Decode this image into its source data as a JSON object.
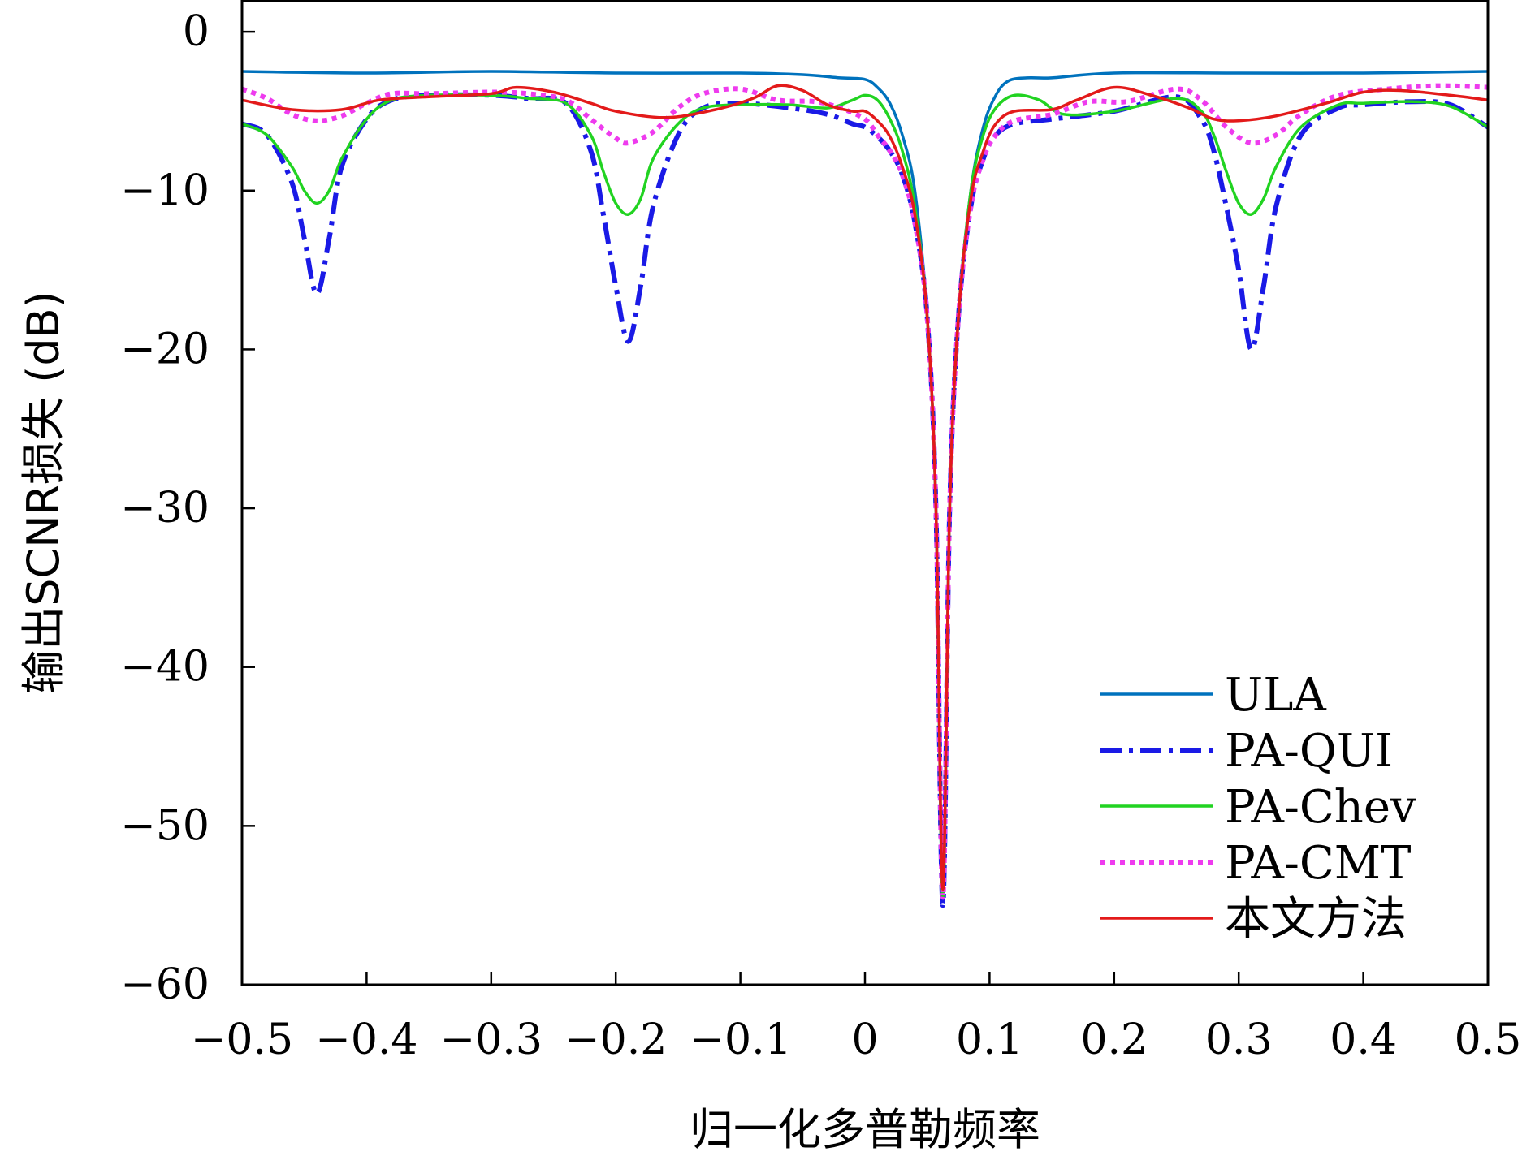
{
  "chart_data": {
    "type": "line",
    "title": "",
    "xlabel": "归一化多普勒频率",
    "ylabel": "输出SCNR损失 (dB)",
    "xlim": [
      -0.5,
      0.5
    ],
    "ylim": [
      -60,
      2
    ],
    "xticks": [
      -0.5,
      -0.4,
      -0.3,
      -0.2,
      -0.1,
      0,
      0.1,
      0.2,
      0.3,
      0.4,
      0.5
    ],
    "xtick_labels": [
      "−0.5",
      "−0.4",
      "−0.3",
      "−0.2",
      "−0.1",
      "0",
      "0.1",
      "0.2",
      "0.3",
      "0.4",
      "0.5"
    ],
    "yticks": [
      0,
      -10,
      -20,
      -30,
      -40,
      -50,
      -60
    ],
    "ytick_labels": [
      "0",
      "−10",
      "−20",
      "−30",
      "−40",
      "−50",
      "−60"
    ],
    "grid": false,
    "legend_position": "bottom-right",
    "series": [
      {
        "name": "ULA",
        "color": "#0072BD",
        "style": "solid",
        "points": [
          [
            -0.5,
            -2.5
          ],
          [
            -0.4,
            -2.6
          ],
          [
            -0.3,
            -2.5
          ],
          [
            -0.2,
            -2.6
          ],
          [
            -0.1,
            -2.6
          ],
          [
            -0.05,
            -2.7
          ],
          [
            -0.02,
            -2.9
          ],
          [
            0.0,
            -3.0
          ],
          [
            0.01,
            -3.5
          ],
          [
            0.02,
            -4.5
          ],
          [
            0.03,
            -6.5
          ],
          [
            0.04,
            -10.0
          ],
          [
            0.05,
            -18.0
          ],
          [
            0.057,
            -30.0
          ],
          [
            0.0625,
            -54.5
          ],
          [
            0.068,
            -30.0
          ],
          [
            0.075,
            -18.0
          ],
          [
            0.085,
            -10.0
          ],
          [
            0.095,
            -6.0
          ],
          [
            0.105,
            -4.0
          ],
          [
            0.115,
            -3.1
          ],
          [
            0.13,
            -2.9
          ],
          [
            0.15,
            -2.9
          ],
          [
            0.2,
            -2.6
          ],
          [
            0.3,
            -2.6
          ],
          [
            0.4,
            -2.6
          ],
          [
            0.5,
            -2.5
          ]
        ]
      },
      {
        "name": "PA-QUI",
        "color": "#1A1AE6",
        "style": "dashdot",
        "points": [
          [
            -0.5,
            -5.8
          ],
          [
            -0.48,
            -6.5
          ],
          [
            -0.46,
            -9.5
          ],
          [
            -0.45,
            -13.0
          ],
          [
            -0.44,
            -16.5
          ],
          [
            -0.43,
            -13.0
          ],
          [
            -0.42,
            -8.5
          ],
          [
            -0.4,
            -5.5
          ],
          [
            -0.38,
            -4.3
          ],
          [
            -0.35,
            -4.0
          ],
          [
            -0.3,
            -4.0
          ],
          [
            -0.27,
            -4.2
          ],
          [
            -0.24,
            -4.5
          ],
          [
            -0.22,
            -7.5
          ],
          [
            -0.21,
            -11.5
          ],
          [
            -0.2,
            -16.0
          ],
          [
            -0.19,
            -19.5
          ],
          [
            -0.18,
            -16.0
          ],
          [
            -0.17,
            -11.0
          ],
          [
            -0.15,
            -6.5
          ],
          [
            -0.13,
            -4.8
          ],
          [
            -0.1,
            -4.5
          ],
          [
            -0.06,
            -4.8
          ],
          [
            -0.03,
            -5.2
          ],
          [
            -0.01,
            -5.8
          ],
          [
            0.0,
            -6.0
          ],
          [
            0.01,
            -6.6
          ],
          [
            0.02,
            -7.5
          ],
          [
            0.03,
            -9.0
          ],
          [
            0.04,
            -12.0
          ],
          [
            0.05,
            -18.0
          ],
          [
            0.057,
            -30.0
          ],
          [
            0.0625,
            -55.0
          ],
          [
            0.068,
            -30.0
          ],
          [
            0.075,
            -18.0
          ],
          [
            0.085,
            -11.0
          ],
          [
            0.095,
            -8.0
          ],
          [
            0.105,
            -6.5
          ],
          [
            0.12,
            -5.8
          ],
          [
            0.15,
            -5.5
          ],
          [
            0.2,
            -5.0
          ],
          [
            0.25,
            -4.1
          ],
          [
            0.27,
            -5.5
          ],
          [
            0.28,
            -7.5
          ],
          [
            0.29,
            -11.0
          ],
          [
            0.3,
            -15.0
          ],
          [
            0.31,
            -20.0
          ],
          [
            0.32,
            -16.0
          ],
          [
            0.33,
            -11.0
          ],
          [
            0.35,
            -6.5
          ],
          [
            0.38,
            -4.8
          ],
          [
            0.4,
            -4.6
          ],
          [
            0.44,
            -4.4
          ],
          [
            0.47,
            -4.6
          ],
          [
            0.5,
            -6.0
          ]
        ]
      },
      {
        "name": "PA-Chev",
        "color": "#21D321",
        "style": "solid",
        "points": [
          [
            -0.5,
            -5.8
          ],
          [
            -0.48,
            -6.5
          ],
          [
            -0.46,
            -8.5
          ],
          [
            -0.45,
            -10.0
          ],
          [
            -0.44,
            -10.8
          ],
          [
            -0.43,
            -10.0
          ],
          [
            -0.42,
            -8.0
          ],
          [
            -0.4,
            -5.5
          ],
          [
            -0.38,
            -4.3
          ],
          [
            -0.35,
            -4.0
          ],
          [
            -0.3,
            -4.0
          ],
          [
            -0.27,
            -4.2
          ],
          [
            -0.24,
            -4.5
          ],
          [
            -0.22,
            -6.5
          ],
          [
            -0.21,
            -8.8
          ],
          [
            -0.2,
            -10.8
          ],
          [
            -0.19,
            -11.5
          ],
          [
            -0.18,
            -10.5
          ],
          [
            -0.17,
            -8.0
          ],
          [
            -0.15,
            -5.8
          ],
          [
            -0.13,
            -4.8
          ],
          [
            -0.1,
            -4.6
          ],
          [
            -0.06,
            -4.6
          ],
          [
            -0.03,
            -4.8
          ],
          [
            -0.01,
            -4.3
          ],
          [
            0.0,
            -4.0
          ],
          [
            0.01,
            -4.3
          ],
          [
            0.02,
            -5.5
          ],
          [
            0.03,
            -7.5
          ],
          [
            0.04,
            -11.0
          ],
          [
            0.05,
            -18.0
          ],
          [
            0.057,
            -30.0
          ],
          [
            0.0625,
            -54.5
          ],
          [
            0.068,
            -30.0
          ],
          [
            0.075,
            -18.0
          ],
          [
            0.085,
            -10.0
          ],
          [
            0.095,
            -6.5
          ],
          [
            0.105,
            -4.8
          ],
          [
            0.12,
            -4.0
          ],
          [
            0.14,
            -4.3
          ],
          [
            0.16,
            -5.2
          ],
          [
            0.2,
            -5.0
          ],
          [
            0.25,
            -4.2
          ],
          [
            0.27,
            -5.0
          ],
          [
            0.28,
            -6.5
          ],
          [
            0.29,
            -8.8
          ],
          [
            0.3,
            -10.8
          ],
          [
            0.31,
            -11.5
          ],
          [
            0.32,
            -10.5
          ],
          [
            0.33,
            -8.5
          ],
          [
            0.35,
            -6.0
          ],
          [
            0.38,
            -4.6
          ],
          [
            0.4,
            -4.5
          ],
          [
            0.44,
            -4.4
          ],
          [
            0.47,
            -4.7
          ],
          [
            0.5,
            -6.0
          ]
        ]
      },
      {
        "name": "PA-CMT",
        "color": "#EE3BEE",
        "style": "dotted",
        "points": [
          [
            -0.5,
            -3.6
          ],
          [
            -0.48,
            -4.2
          ],
          [
            -0.46,
            -5.2
          ],
          [
            -0.44,
            -5.6
          ],
          [
            -0.42,
            -5.3
          ],
          [
            -0.4,
            -4.5
          ],
          [
            -0.38,
            -3.9
          ],
          [
            -0.35,
            -3.9
          ],
          [
            -0.3,
            -3.8
          ],
          [
            -0.27,
            -3.9
          ],
          [
            -0.24,
            -4.3
          ],
          [
            -0.22,
            -5.5
          ],
          [
            -0.2,
            -6.7
          ],
          [
            -0.19,
            -7.0
          ],
          [
            -0.17,
            -6.3
          ],
          [
            -0.15,
            -4.8
          ],
          [
            -0.13,
            -3.9
          ],
          [
            -0.1,
            -3.6
          ],
          [
            -0.07,
            -4.3
          ],
          [
            -0.04,
            -4.4
          ],
          [
            -0.02,
            -4.8
          ],
          [
            0.0,
            -5.5
          ],
          [
            0.01,
            -6.5
          ],
          [
            0.02,
            -7.5
          ],
          [
            0.03,
            -9.0
          ],
          [
            0.04,
            -12.0
          ],
          [
            0.05,
            -18.0
          ],
          [
            0.057,
            -30.0
          ],
          [
            0.0625,
            -54.5
          ],
          [
            0.068,
            -30.0
          ],
          [
            0.075,
            -18.0
          ],
          [
            0.085,
            -11.0
          ],
          [
            0.095,
            -8.0
          ],
          [
            0.105,
            -6.5
          ],
          [
            0.12,
            -5.6
          ],
          [
            0.15,
            -5.2
          ],
          [
            0.18,
            -4.4
          ],
          [
            0.21,
            -4.4
          ],
          [
            0.25,
            -3.6
          ],
          [
            0.27,
            -4.3
          ],
          [
            0.29,
            -6.0
          ],
          [
            0.31,
            -7.0
          ],
          [
            0.33,
            -6.5
          ],
          [
            0.35,
            -5.2
          ],
          [
            0.38,
            -4.0
          ],
          [
            0.42,
            -3.6
          ],
          [
            0.46,
            -3.4
          ],
          [
            0.5,
            -3.5
          ]
        ]
      },
      {
        "name": "本文方法",
        "color": "#E31A1A",
        "style": "solid",
        "points": [
          [
            -0.5,
            -4.3
          ],
          [
            -0.46,
            -4.9
          ],
          [
            -0.42,
            -4.9
          ],
          [
            -0.39,
            -4.3
          ],
          [
            -0.35,
            -4.1
          ],
          [
            -0.3,
            -3.9
          ],
          [
            -0.28,
            -3.5
          ],
          [
            -0.25,
            -3.8
          ],
          [
            -0.22,
            -4.5
          ],
          [
            -0.2,
            -5.0
          ],
          [
            -0.16,
            -5.4
          ],
          [
            -0.12,
            -4.9
          ],
          [
            -0.09,
            -4.2
          ],
          [
            -0.07,
            -3.4
          ],
          [
            -0.05,
            -3.7
          ],
          [
            -0.03,
            -4.6
          ],
          [
            -0.01,
            -5.0
          ],
          [
            0.0,
            -5.0
          ],
          [
            0.01,
            -5.6
          ],
          [
            0.02,
            -6.6
          ],
          [
            0.03,
            -8.5
          ],
          [
            0.04,
            -11.5
          ],
          [
            0.05,
            -18.0
          ],
          [
            0.057,
            -30.0
          ],
          [
            0.0625,
            -54.0
          ],
          [
            0.068,
            -30.0
          ],
          [
            0.075,
            -18.0
          ],
          [
            0.085,
            -10.5
          ],
          [
            0.095,
            -7.5
          ],
          [
            0.105,
            -5.8
          ],
          [
            0.12,
            -5.0
          ],
          [
            0.15,
            -4.9
          ],
          [
            0.17,
            -4.3
          ],
          [
            0.2,
            -3.5
          ],
          [
            0.23,
            -4.0
          ],
          [
            0.26,
            -4.8
          ],
          [
            0.28,
            -5.5
          ],
          [
            0.3,
            -5.6
          ],
          [
            0.33,
            -5.3
          ],
          [
            0.37,
            -4.5
          ],
          [
            0.4,
            -3.8
          ],
          [
            0.43,
            -3.7
          ],
          [
            0.47,
            -4.0
          ],
          [
            0.5,
            -4.3
          ]
        ]
      }
    ]
  }
}
